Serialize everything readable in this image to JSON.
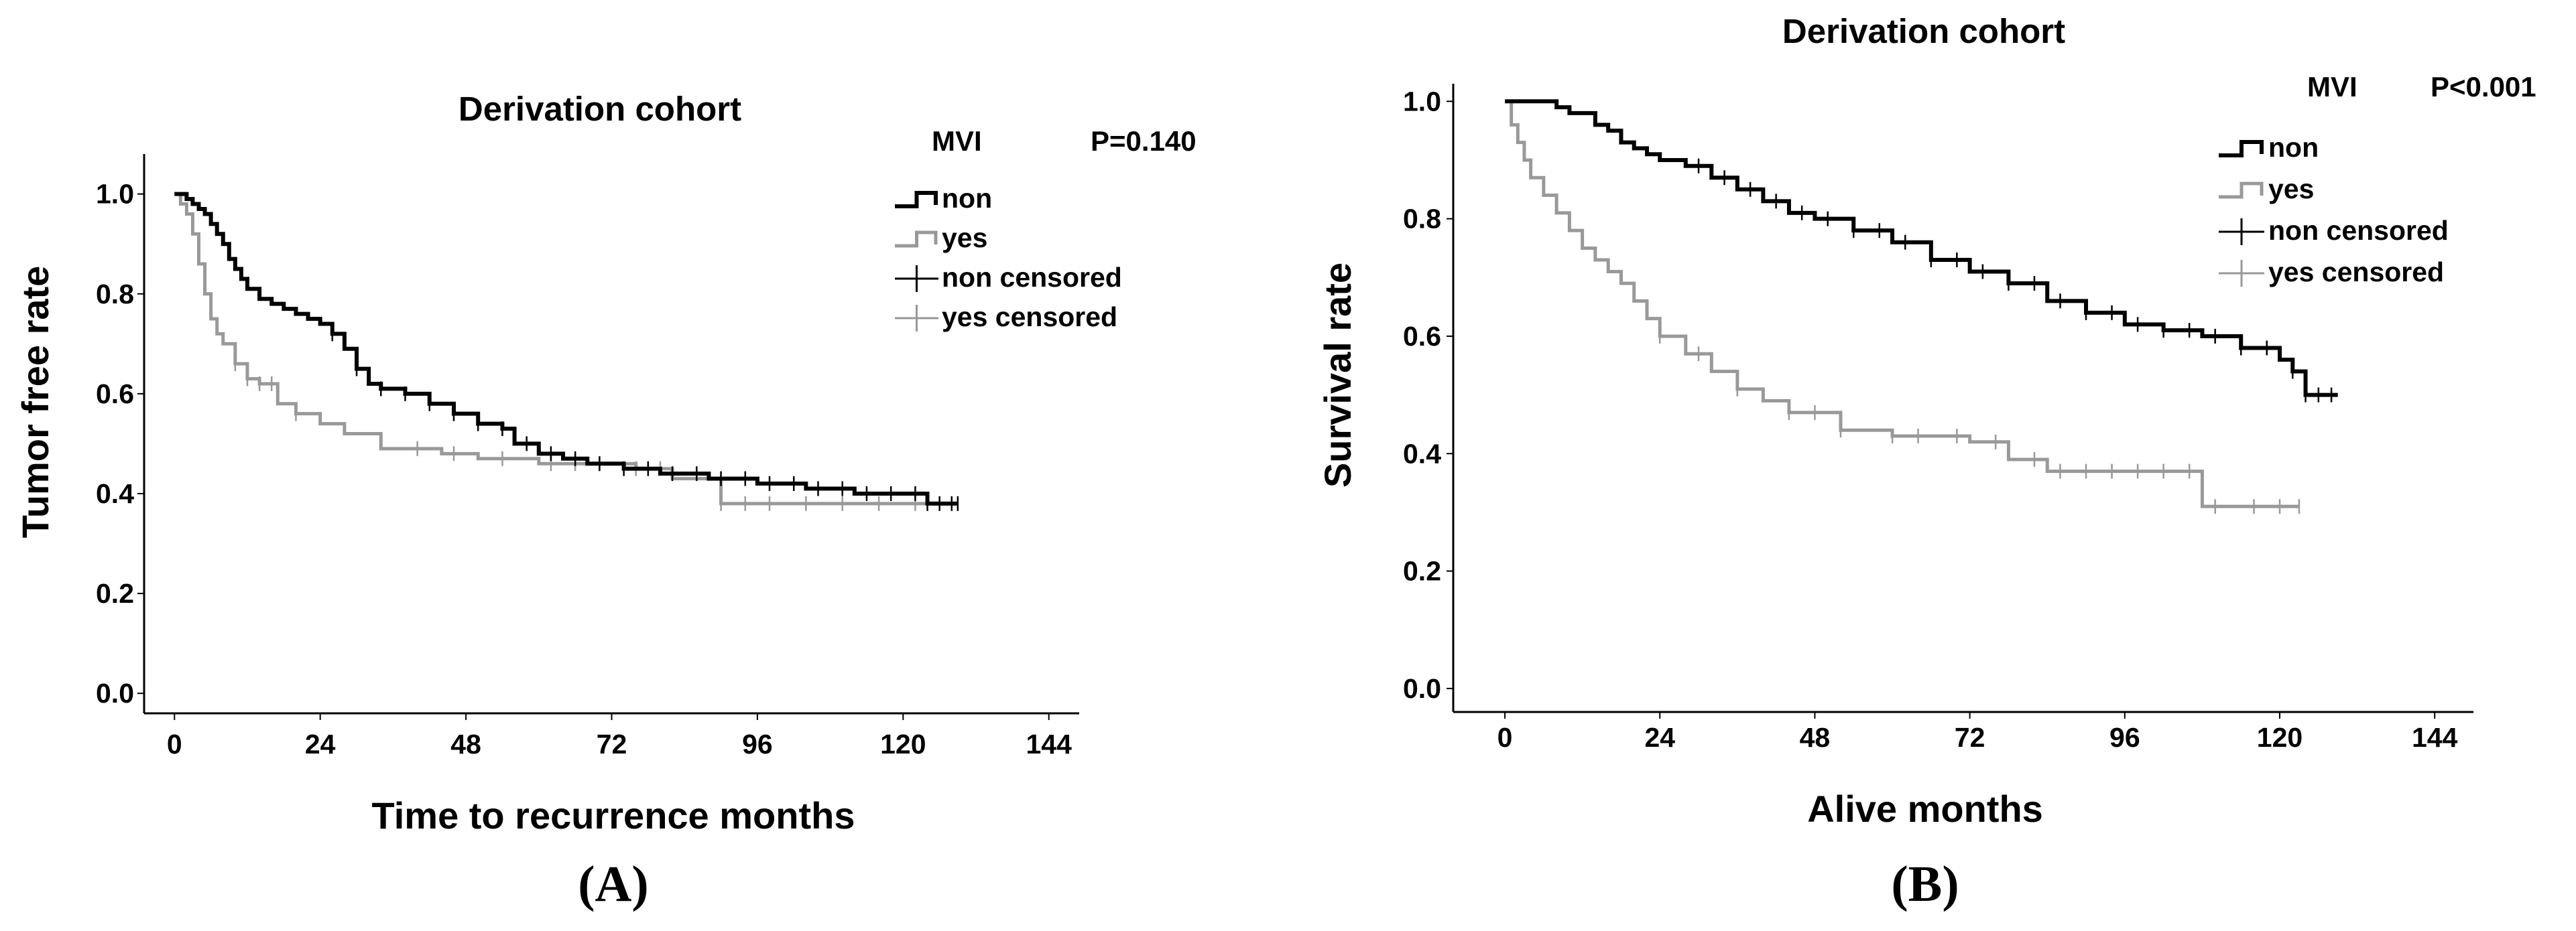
{
  "figure": {
    "colors": {
      "non": "#000000",
      "yes": "#999999",
      "axis": "#000000"
    }
  },
  "chart_data": [
    {
      "type": "line",
      "panel_label": "(A)",
      "title": "Derivation cohort",
      "variable_label": "MVI",
      "p_value_label": "P=0.140",
      "xlabel": "Time to recurrence months",
      "ylabel": "Tumor free rate",
      "xlim": [
        -5,
        149
      ],
      "ylim": [
        -0.04,
        1.08
      ],
      "xticks": [
        0,
        24,
        48,
        72,
        96,
        120,
        144
      ],
      "xtick_labels": [
        "0",
        "24",
        "48",
        "72",
        "96",
        "120",
        "144"
      ],
      "yticks": [
        0,
        0.2,
        0.4,
        0.6,
        0.8,
        1.0
      ],
      "ytick_labels": [
        "0.0",
        "0.2",
        "0.4",
        "0.6",
        "0.8",
        "1.0"
      ],
      "legend": [
        "non",
        "yes",
        "non censored",
        "yes censored"
      ],
      "series": [
        {
          "name": "non",
          "x": [
            0,
            2,
            3,
            4,
            5,
            6,
            7,
            8,
            9,
            10,
            11,
            12,
            14,
            16,
            18,
            20,
            22,
            24,
            26,
            28,
            30,
            32,
            34,
            38,
            42,
            46,
            50,
            54,
            56,
            60,
            64,
            68,
            74,
            80,
            88,
            96,
            104,
            112,
            120,
            124,
            129
          ],
          "values": [
            1.0,
            0.99,
            0.98,
            0.97,
            0.96,
            0.94,
            0.92,
            0.9,
            0.87,
            0.85,
            0.83,
            0.81,
            0.79,
            0.78,
            0.77,
            0.76,
            0.75,
            0.74,
            0.72,
            0.69,
            0.65,
            0.62,
            0.61,
            0.6,
            0.58,
            0.56,
            0.54,
            0.53,
            0.5,
            0.48,
            0.47,
            0.46,
            0.45,
            0.44,
            0.43,
            0.42,
            0.41,
            0.4,
            0.4,
            0.38,
            0.38
          ],
          "censored_x": [
            26,
            30,
            34,
            38,
            42,
            46,
            50,
            54,
            58,
            62,
            66,
            70,
            74,
            78,
            82,
            86,
            90,
            94,
            98,
            102,
            106,
            110,
            114,
            118,
            122,
            124,
            126,
            128,
            129
          ]
        },
        {
          "name": "yes",
          "x": [
            0,
            1,
            2,
            3,
            4,
            5,
            6,
            7,
            8,
            10,
            12,
            14,
            17,
            20,
            24,
            28,
            34,
            44,
            50,
            60,
            72,
            76,
            82,
            90,
            110,
            120,
            129
          ],
          "values": [
            1.0,
            0.98,
            0.96,
            0.92,
            0.86,
            0.8,
            0.75,
            0.72,
            0.7,
            0.66,
            0.63,
            0.62,
            0.58,
            0.56,
            0.54,
            0.52,
            0.49,
            0.48,
            0.47,
            0.46,
            0.46,
            0.45,
            0.43,
            0.38,
            0.38,
            0.38,
            0.38
          ],
          "censored_x": [
            10,
            12,
            14,
            16,
            20,
            40,
            46,
            54,
            62,
            66,
            70,
            76,
            80,
            90,
            94,
            98,
            104,
            110,
            116,
            122
          ]
        }
      ]
    },
    {
      "type": "line",
      "panel_label": "(B)",
      "title": "Derivation cohort",
      "variable_label": "MVI",
      "p_value_label": "P<0.001",
      "xlabel": "Alive months",
      "ylabel": "Survival rate",
      "xlim": [
        -8,
        150
      ],
      "ylim": [
        -0.04,
        1.03
      ],
      "xticks": [
        0,
        24,
        48,
        72,
        96,
        120,
        144
      ],
      "xtick_labels": [
        "0",
        "24",
        "48",
        "72",
        "96",
        "120",
        "144"
      ],
      "yticks": [
        0,
        0.2,
        0.4,
        0.6,
        0.8,
        1.0
      ],
      "ytick_labels": [
        "0.0",
        "0.2",
        "0.4",
        "0.6",
        "0.8",
        "1.0"
      ],
      "legend": [
        "non",
        "yes",
        "non censored",
        "yes censored"
      ],
      "series": [
        {
          "name": "non",
          "x": [
            0,
            2,
            5,
            8,
            10,
            12,
            14,
            16,
            18,
            20,
            22,
            24,
            28,
            32,
            36,
            40,
            44,
            48,
            54,
            60,
            66,
            72,
            78,
            84,
            90,
            96,
            102,
            108,
            114,
            120,
            122,
            124,
            129
          ],
          "values": [
            1.0,
            1.0,
            1.0,
            0.99,
            0.98,
            0.98,
            0.96,
            0.95,
            0.93,
            0.92,
            0.91,
            0.9,
            0.89,
            0.87,
            0.85,
            0.83,
            0.81,
            0.8,
            0.78,
            0.76,
            0.73,
            0.71,
            0.69,
            0.66,
            0.64,
            0.62,
            0.61,
            0.6,
            0.58,
            0.56,
            0.54,
            0.5,
            0.5
          ],
          "censored_x": [
            30,
            34,
            38,
            42,
            46,
            50,
            54,
            58,
            62,
            66,
            70,
            74,
            78,
            82,
            86,
            90,
            94,
            98,
            102,
            106,
            110,
            114,
            118,
            122,
            124,
            126,
            128
          ]
        },
        {
          "name": "yes",
          "x": [
            0,
            1,
            2,
            3,
            4,
            6,
            8,
            10,
            12,
            14,
            16,
            18,
            20,
            22,
            24,
            28,
            32,
            36,
            40,
            44,
            52,
            60,
            72,
            78,
            84,
            96,
            108,
            123
          ],
          "values": [
            1.0,
            0.96,
            0.93,
            0.9,
            0.87,
            0.84,
            0.81,
            0.78,
            0.75,
            0.73,
            0.71,
            0.69,
            0.66,
            0.63,
            0.6,
            0.57,
            0.54,
            0.51,
            0.49,
            0.47,
            0.44,
            0.43,
            0.42,
            0.39,
            0.37,
            0.37,
            0.31,
            0.31
          ],
          "censored_x": [
            24,
            30,
            36,
            44,
            48,
            52,
            60,
            64,
            70,
            76,
            82,
            86,
            90,
            94,
            98,
            102,
            106,
            110,
            116,
            120,
            123
          ]
        }
      ]
    }
  ]
}
